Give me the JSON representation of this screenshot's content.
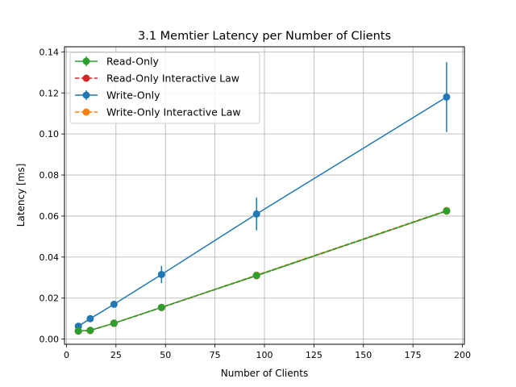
{
  "chart_data": {
    "type": "line",
    "title": "3.1 Memtier Latency per Number of Clients",
    "xlabel": "Number of Clients",
    "ylabel": "Latency [ms]",
    "xlim": [
      -1,
      201
    ],
    "ylim": [
      -0.0025,
      0.1425
    ],
    "xticks": [
      0,
      25,
      50,
      75,
      100,
      125,
      150,
      175,
      200
    ],
    "yticks": [
      0.0,
      0.02,
      0.04,
      0.06,
      0.08,
      0.1,
      0.12,
      0.14
    ],
    "ytick_labels": [
      "0.00",
      "0.02",
      "0.04",
      "0.06",
      "0.08",
      "0.10",
      "0.12",
      "0.14"
    ],
    "grid": true,
    "legend_position": "top-left",
    "x": [
      6,
      12,
      24,
      48,
      96,
      192
    ],
    "series": [
      {
        "name": "Read-Only",
        "style": "solid-errorbar",
        "color": "#2ca02c",
        "values": [
          0.004,
          0.0043,
          0.0078,
          0.0155,
          0.031,
          0.0625
        ],
        "errors": [
          0.0003,
          0.0003,
          0.0005,
          0.0008,
          0.0012,
          0.001
        ]
      },
      {
        "name": "Read-Only Interactive Law",
        "style": "dashed-marker",
        "color": "#d62728",
        "values": [
          0.0039,
          0.0042,
          0.0077,
          0.0154,
          0.0309,
          0.0624
        ]
      },
      {
        "name": "Write-Only",
        "style": "solid-errorbar",
        "color": "#1f77b4",
        "values": [
          0.0063,
          0.01,
          0.017,
          0.0315,
          0.061,
          0.118
        ],
        "errors": [
          0.0007,
          0.0008,
          0.0012,
          0.0042,
          0.008,
          0.017
        ]
      },
      {
        "name": "Write-Only Interactive Law",
        "style": "dashed-marker",
        "color": "#ff7f0e",
        "values": [
          0.004,
          0.0043,
          0.0078,
          0.0155,
          0.0312,
          0.0627
        ]
      }
    ]
  }
}
